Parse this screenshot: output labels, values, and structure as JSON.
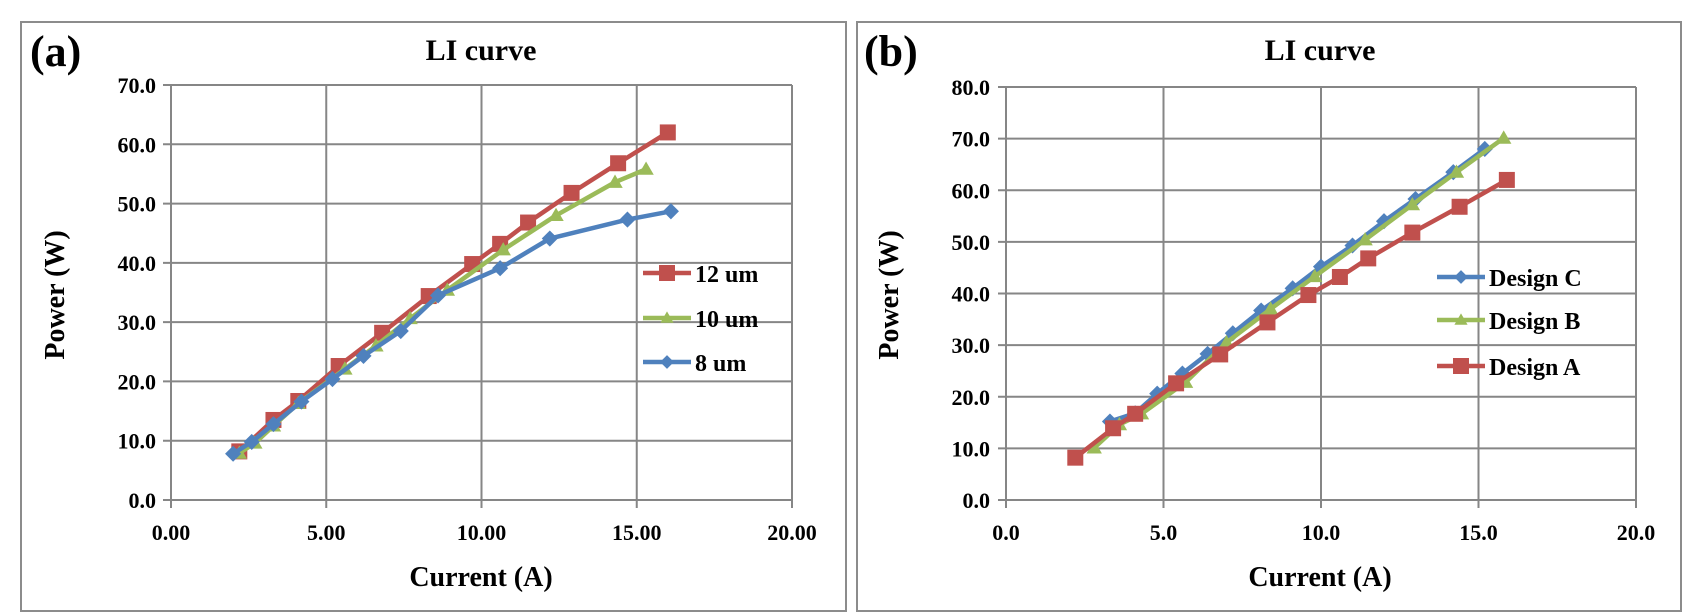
{
  "colors": {
    "red": "#C0504D",
    "green": "#9BBB59",
    "blue": "#4F81BD",
    "grid": "#868686",
    "frame": "#8C8C8C"
  },
  "chart_data": [
    {
      "panel_label": "(a)",
      "type": "line",
      "title": "LI curve",
      "xlabel": "Current (A)",
      "ylabel": "Power (W)",
      "xlim": [
        0,
        20
      ],
      "ylim": [
        0,
        70
      ],
      "xticks": [
        0,
        5,
        10,
        15,
        20
      ],
      "xtick_labels": [
        "0.00",
        "5.00",
        "10.00",
        "15.00",
        "20.00"
      ],
      "yticks": [
        0,
        10,
        20,
        30,
        40,
        50,
        60,
        70
      ],
      "ytick_labels": [
        "0.0",
        "10.0",
        "20.0",
        "30.0",
        "40.0",
        "50.0",
        "60.0",
        "70.0"
      ],
      "grid": true,
      "legend_position": "right",
      "series": [
        {
          "name": "12 um",
          "color": "#C0504D",
          "marker": "square",
          "x": [
            2.2,
            3.3,
            4.1,
            5.4,
            6.8,
            8.3,
            9.7,
            10.6,
            11.5,
            12.9,
            14.4,
            16.0
          ],
          "y": [
            8.2,
            13.5,
            16.7,
            22.6,
            28.2,
            34.4,
            39.8,
            43.2,
            46.8,
            51.8,
            56.8,
            62.0
          ]
        },
        {
          "name": "10 um",
          "color": "#9BBB59",
          "marker": "triangle",
          "x": [
            2.2,
            2.7,
            3.3,
            4.1,
            5.6,
            6.6,
            7.7,
            8.9,
            10.7,
            12.4,
            14.3,
            15.3
          ],
          "y": [
            7.9,
            9.6,
            12.5,
            16.3,
            22.1,
            26.0,
            30.6,
            35.4,
            42.2,
            48.0,
            53.6,
            55.8
          ]
        },
        {
          "name": "8 um",
          "color": "#4F81BD",
          "marker": "diamond",
          "x": [
            2.0,
            2.6,
            3.3,
            4.2,
            5.2,
            6.2,
            7.4,
            8.6,
            10.6,
            12.2,
            14.7,
            16.1
          ],
          "y": [
            7.8,
            9.8,
            12.8,
            16.6,
            20.4,
            24.3,
            28.5,
            34.5,
            39.1,
            44.1,
            47.3,
            48.7
          ]
        }
      ]
    },
    {
      "panel_label": "(b)",
      "type": "line",
      "title": "LI curve",
      "xlabel": "Current (A)",
      "ylabel": "Power (W)",
      "xlim": [
        0,
        20
      ],
      "ylim": [
        0,
        80
      ],
      "xticks": [
        0,
        5,
        10,
        15,
        20
      ],
      "xtick_labels": [
        "0.0",
        "5.0",
        "10.0",
        "15.0",
        "20.0"
      ],
      "yticks": [
        0,
        10,
        20,
        30,
        40,
        50,
        60,
        70,
        80
      ],
      "ytick_labels": [
        "0.0",
        "10.0",
        "20.0",
        "30.0",
        "40.0",
        "50.0",
        "60.0",
        "70.0",
        "80.0"
      ],
      "grid": true,
      "legend_position": "right",
      "series": [
        {
          "name": "Design C",
          "color": "#4F81BD",
          "marker": "diamond",
          "x": [
            3.3,
            4.1,
            4.8,
            5.6,
            6.4,
            7.2,
            8.1,
            9.1,
            10.0,
            11.0,
            12.0,
            13.0,
            14.2,
            15.2
          ],
          "y": [
            15.2,
            16.8,
            20.6,
            24.5,
            28.3,
            32.3,
            36.7,
            41.0,
            45.2,
            49.3,
            54.0,
            58.3,
            63.5,
            68.0
          ]
        },
        {
          "name": "Design B",
          "color": "#9BBB59",
          "marker": "triangle",
          "x": [
            2.8,
            3.6,
            4.3,
            5.7,
            7.0,
            8.4,
            9.8,
            11.4,
            12.9,
            14.3,
            15.8
          ],
          "y": [
            10.1,
            14.6,
            16.7,
            22.8,
            30.5,
            37.0,
            43.3,
            50.4,
            57.2,
            63.5,
            70.1
          ]
        },
        {
          "name": "Design A",
          "color": "#C0504D",
          "marker": "square",
          "x": [
            2.2,
            3.4,
            4.1,
            5.4,
            6.8,
            8.3,
            9.6,
            10.6,
            11.5,
            12.9,
            14.4,
            15.9
          ],
          "y": [
            8.2,
            13.9,
            16.7,
            22.6,
            28.2,
            34.4,
            39.7,
            43.2,
            46.8,
            51.8,
            56.8,
            62.0
          ]
        }
      ]
    }
  ]
}
